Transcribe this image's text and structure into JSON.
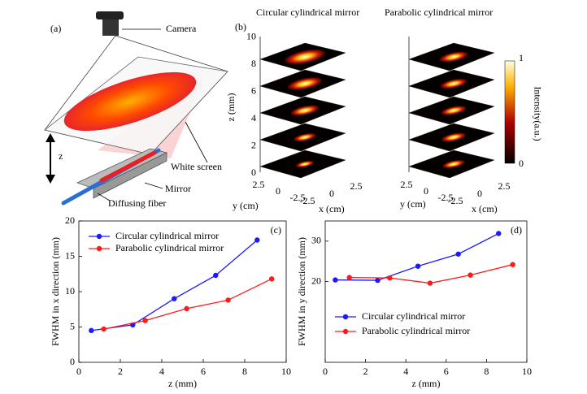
{
  "panel_a": {
    "label": "(a)",
    "camera": "Camera",
    "z": "z",
    "screen": "White screen",
    "mirror": "Mirror",
    "fiber": "Diffusing fiber"
  },
  "panel_b": {
    "label": "(b)",
    "title_left": "Circular cylindrical mirror",
    "title_right": "Parabolic cylindrical mirror",
    "z_ticks": [
      "0",
      "2",
      "4",
      "6",
      "8",
      "10"
    ],
    "z_label": "z (mm)",
    "y_label": "y (cm)",
    "x_label": "x (cm)",
    "y_ticks": [
      "2.5",
      "0",
      "-2.5"
    ],
    "x_ticks": [
      "-2.5",
      "0",
      "2.5"
    ],
    "colorbar_max": "1",
    "colorbar_min": "0",
    "colorbar_label": "Intensity(a.u.)"
  },
  "chart_data": [
    {
      "type": "line",
      "panel_label": "(c)",
      "xlabel": "z (mm)",
      "ylabel": "FWHM in x direction (mm)",
      "xlim": [
        0,
        10
      ],
      "xticks": [
        0,
        2,
        4,
        6,
        8,
        10
      ],
      "ylim": [
        0,
        20
      ],
      "yticks": [
        0,
        5,
        10,
        15,
        20
      ],
      "legend": "upper-left",
      "series": [
        {
          "name": "Circular cylindrical mirror",
          "color": "#1a1aff",
          "x": [
            0.6,
            2.6,
            4.6,
            6.6,
            8.6
          ],
          "values": [
            4.5,
            5.3,
            9.0,
            12.3,
            17.3
          ]
        },
        {
          "name": "Parabolic cylindrical mirror",
          "color": "#ff1a1a",
          "x": [
            1.2,
            3.2,
            5.2,
            7.2,
            9.3
          ],
          "values": [
            4.7,
            5.9,
            7.6,
            8.8,
            11.8
          ]
        }
      ]
    },
    {
      "type": "line",
      "panel_label": "(d)",
      "xlabel": "z (mm)",
      "ylabel": "FWHM in y direction (mm)",
      "xlim": [
        0,
        10
      ],
      "xticks": [
        0,
        2,
        4,
        6,
        8,
        10
      ],
      "ylim": [
        0,
        35
      ],
      "yticks": [
        20,
        30
      ],
      "legend": "lower-left",
      "series": [
        {
          "name": "Circular cylindrical mirror",
          "color": "#1a1aff",
          "x": [
            0.5,
            2.6,
            4.6,
            6.6,
            8.6
          ],
          "values": [
            20.4,
            20.3,
            23.8,
            26.8,
            31.9
          ]
        },
        {
          "name": "Parabolic cylindrical mirror",
          "color": "#ff1a1a",
          "x": [
            1.2,
            3.2,
            5.2,
            7.2,
            9.3
          ],
          "values": [
            21.0,
            20.9,
            19.6,
            21.6,
            24.2
          ]
        }
      ]
    }
  ]
}
